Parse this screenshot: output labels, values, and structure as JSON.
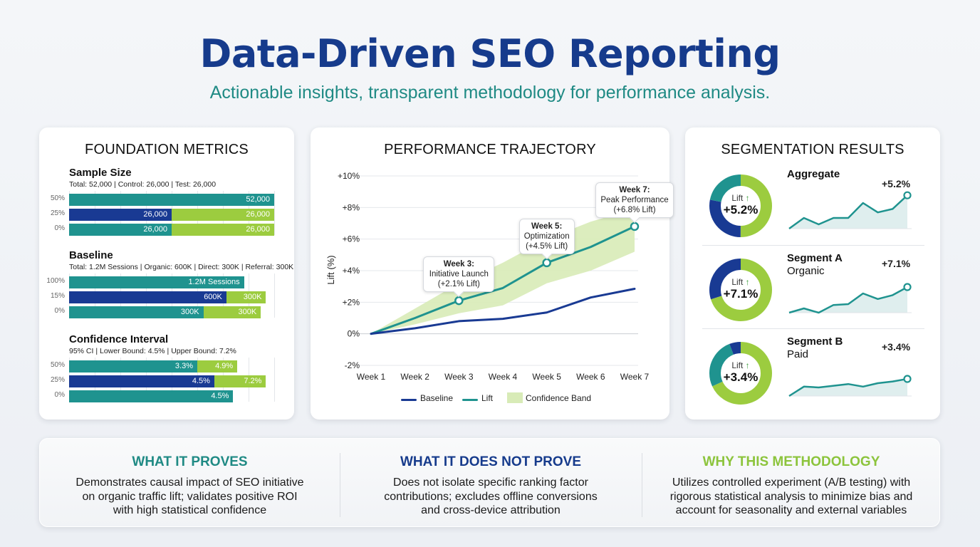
{
  "header": {
    "title": "Data-Driven SEO Reporting",
    "subtitle": "Actionable insights, transparent methodology for performance analysis."
  },
  "colors": {
    "navy": "#193a93",
    "teal": "#1f938f",
    "green": "#9ccc3f",
    "band": "#d8ebb7",
    "title": "#163b8c"
  },
  "foundation": {
    "title": "FOUNDATION METRICS",
    "sections": [
      {
        "heading": "Sample Size",
        "summary": "Total: 52,000 | Control: 26,000 | Test: 26,000",
        "rows": [
          {
            "label": "50%",
            "segments": [
              {
                "value": "52,000",
                "color": "teal",
                "width": 1.0
              }
            ]
          },
          {
            "label": "25%",
            "segments": [
              {
                "value": "26,000",
                "color": "navy",
                "width": 0.5
              },
              {
                "value": "26,000",
                "color": "green",
                "width": 0.5
              }
            ]
          },
          {
            "label": "0%",
            "segments": [
              {
                "value": "26,000",
                "color": "teal",
                "width": 0.5
              },
              {
                "value": "26,000",
                "color": "green",
                "width": 0.5
              }
            ]
          }
        ]
      },
      {
        "heading": "Baseline",
        "summary": "Total: 1.2M Sessions | Organic: 600K | Direct: 300K | Referral: 300K",
        "rows": [
          {
            "label": "100%",
            "segments": [
              {
                "value": "1.2M Sessions",
                "color": "teal",
                "width": 0.853
              }
            ]
          },
          {
            "label": "15%",
            "segments": [
              {
                "value": "600K",
                "color": "navy",
                "width": 0.767
              },
              {
                "value": "300K",
                "color": "green",
                "width": 0.193
              }
            ]
          },
          {
            "label": "0%",
            "segments": [
              {
                "value": "300K",
                "color": "teal",
                "width": 0.655
              },
              {
                "value": "300K",
                "color": "green",
                "width": 0.28
              }
            ]
          }
        ]
      },
      {
        "heading": "Confidence Interval",
        "summary": "95% CI | Lower Bound: 4.5% | Upper Bound: 7.2%",
        "rows": [
          {
            "label": "50%",
            "segments": [
              {
                "value": "3.3%",
                "color": "teal",
                "width": 0.625
              },
              {
                "value": "4.9%",
                "color": "green",
                "width": 0.195
              }
            ]
          },
          {
            "label": "25%",
            "segments": [
              {
                "value": "4.5%",
                "color": "navy",
                "width": 0.708
              },
              {
                "value": "7.2%",
                "color": "green",
                "width": 0.252
              }
            ]
          },
          {
            "label": "0%",
            "segments": [
              {
                "value": "4.5%",
                "color": "teal",
                "width": 0.8
              }
            ]
          }
        ]
      }
    ]
  },
  "chart_data": {
    "type": "line",
    "title": "PERFORMANCE TRAJECTORY",
    "xlabel": "",
    "ylabel": "Lift (%)",
    "x": [
      "Week 1",
      "Week 2",
      "Week 3",
      "Week 4",
      "Week 5",
      "Week 6",
      "Week 7"
    ],
    "ylim": [
      -2,
      10
    ],
    "yticks": [
      -2,
      0,
      2,
      4,
      6,
      8,
      10
    ],
    "ytick_labels": [
      "-2%",
      "0%",
      "+2%",
      "+4%",
      "+6%",
      "+8%",
      "+10%"
    ],
    "grid": true,
    "series": [
      {
        "name": "Baseline",
        "color": "#193a93",
        "values": [
          0,
          0.35,
          0.8,
          0.95,
          1.35,
          2.3,
          2.85
        ]
      },
      {
        "name": "Lift",
        "color": "#1f938f",
        "values": [
          0,
          1.0,
          2.1,
          2.9,
          4.5,
          5.5,
          6.8
        ]
      }
    ],
    "band": {
      "name": "Confidence Band",
      "color": "#d8ebb7",
      "upper": [
        0,
        1.6,
        3.2,
        4.5,
        6.0,
        7.1,
        7.9
      ],
      "lower": [
        0,
        0.6,
        1.3,
        1.8,
        3.2,
        4.0,
        5.2
      ]
    },
    "legend": [
      "Baseline",
      "Lift",
      "Confidence Band"
    ],
    "legend_position": "bottom",
    "annotations": [
      {
        "week_index": 2,
        "title": "Week 3:",
        "line1": "Initiative Launch",
        "line2": "(+2.1% Lift)",
        "value": 2.1
      },
      {
        "week_index": 4,
        "title": "Week 5:",
        "line1": "Optimization",
        "line2": "(+4.5% Lift)",
        "value": 4.5
      },
      {
        "week_index": 6,
        "title": "Week 7:",
        "line1": "Peak Performance",
        "line2": "(+6.8% Lift)",
        "value": 6.8
      }
    ]
  },
  "segmentation": {
    "title": "SEGMENTATION RESULTS",
    "lift_label": "Lift",
    "segments": [
      {
        "name": "Aggregate",
        "desc": "",
        "lift": "+5.2%",
        "donut": [
          {
            "color": "green",
            "fraction": 0.5
          },
          {
            "color": "navy",
            "fraction": 0.28
          },
          {
            "color": "teal",
            "fraction": 0.22
          }
        ],
        "spark": [
          0,
          2.5,
          1,
          2.5,
          2.5,
          6,
          3.8,
          4.6,
          7.8
        ]
      },
      {
        "name": "Segment A",
        "desc": "Organic",
        "lift": "+7.1%",
        "donut": [
          {
            "color": "green",
            "fraction": 0.7
          },
          {
            "color": "navy",
            "fraction": 0.3
          }
        ],
        "spark": [
          0,
          1,
          0,
          1.8,
          2,
          4.5,
          3.2,
          4.1,
          6
        ]
      },
      {
        "name": "Segment B",
        "desc": "Paid",
        "lift": "+3.4%",
        "donut": [
          {
            "color": "green",
            "fraction": 0.68
          },
          {
            "color": "teal",
            "fraction": 0.26
          },
          {
            "color": "navy",
            "fraction": 0.06
          }
        ],
        "spark": [
          0,
          2.2,
          2,
          2.4,
          2.8,
          2.2,
          3,
          3.4,
          4
        ]
      }
    ]
  },
  "bottom": [
    {
      "heading": "WHAT IT PROVES",
      "color": "#1f8a84",
      "lines": [
        "Demonstrates causal impact of SEO initiative",
        "on organic traffic lift; validates positive ROI",
        "with high statistical confidence"
      ]
    },
    {
      "heading": "WHAT IT DOES NOT PROVE",
      "color": "#163b8c",
      "lines": [
        "Does not isolate specific ranking factor",
        "contributions; excludes offline conversions",
        "and cross-device attribution"
      ]
    },
    {
      "heading": "WHY THIS METHODOLOGY",
      "color": "#8cc43c",
      "lines": [
        "Utilizes controlled experiment (A/B testing) with",
        "rigorous statistical analysis to minimize bias and",
        "account for seasonality and external variables"
      ]
    }
  ]
}
